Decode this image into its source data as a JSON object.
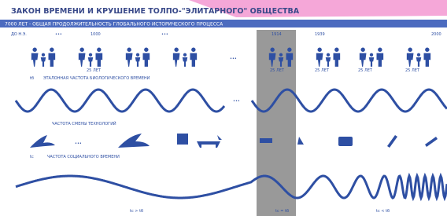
{
  "header": {
    "title": "ЗАКОН ВРЕМЕНИ И КРУШЕНИЕ ТОЛПО-\"ЭЛИТАРНОГО\" ОБЩЕСТВА",
    "banner": "7000 ЛЕТ - ОБЩАЯ ПРОДОЛЖИТЕЛЬНОСТЬ ГЛОБАЛЬНОГО ИСТОРИЧЕСКОГО ПРОЦЕССА"
  },
  "timeline": [
    "ДО Н.Э.",
    "•••",
    "1000",
    "•••",
    "1914",
    "1939",
    "2000"
  ],
  "generation_labels": [
    "25 ЛЕТ",
    "25 ЛЕТ",
    "25 ЛЕТ",
    "25 ЛЕТ",
    "25 ЛЕТ"
  ],
  "ellipsis": "•••",
  "rows": {
    "symbol": "tб",
    "bio": "ЭТАЛОННАЯ ЧАСТОТА БИОЛОГИЧЕСКОГО ВРЕМЕНИ",
    "tech": "ЧАСТОТА СМЕНЫ ТЕХНОЛОГИЙ",
    "social_symbol": "tс",
    "social": "ЧАСТОТА СОЦИАЛЬНОГО ВРЕМЕНИ"
  },
  "comparisons": [
    "tс > tб",
    "tс = tб",
    "tс < tб"
  ]
}
